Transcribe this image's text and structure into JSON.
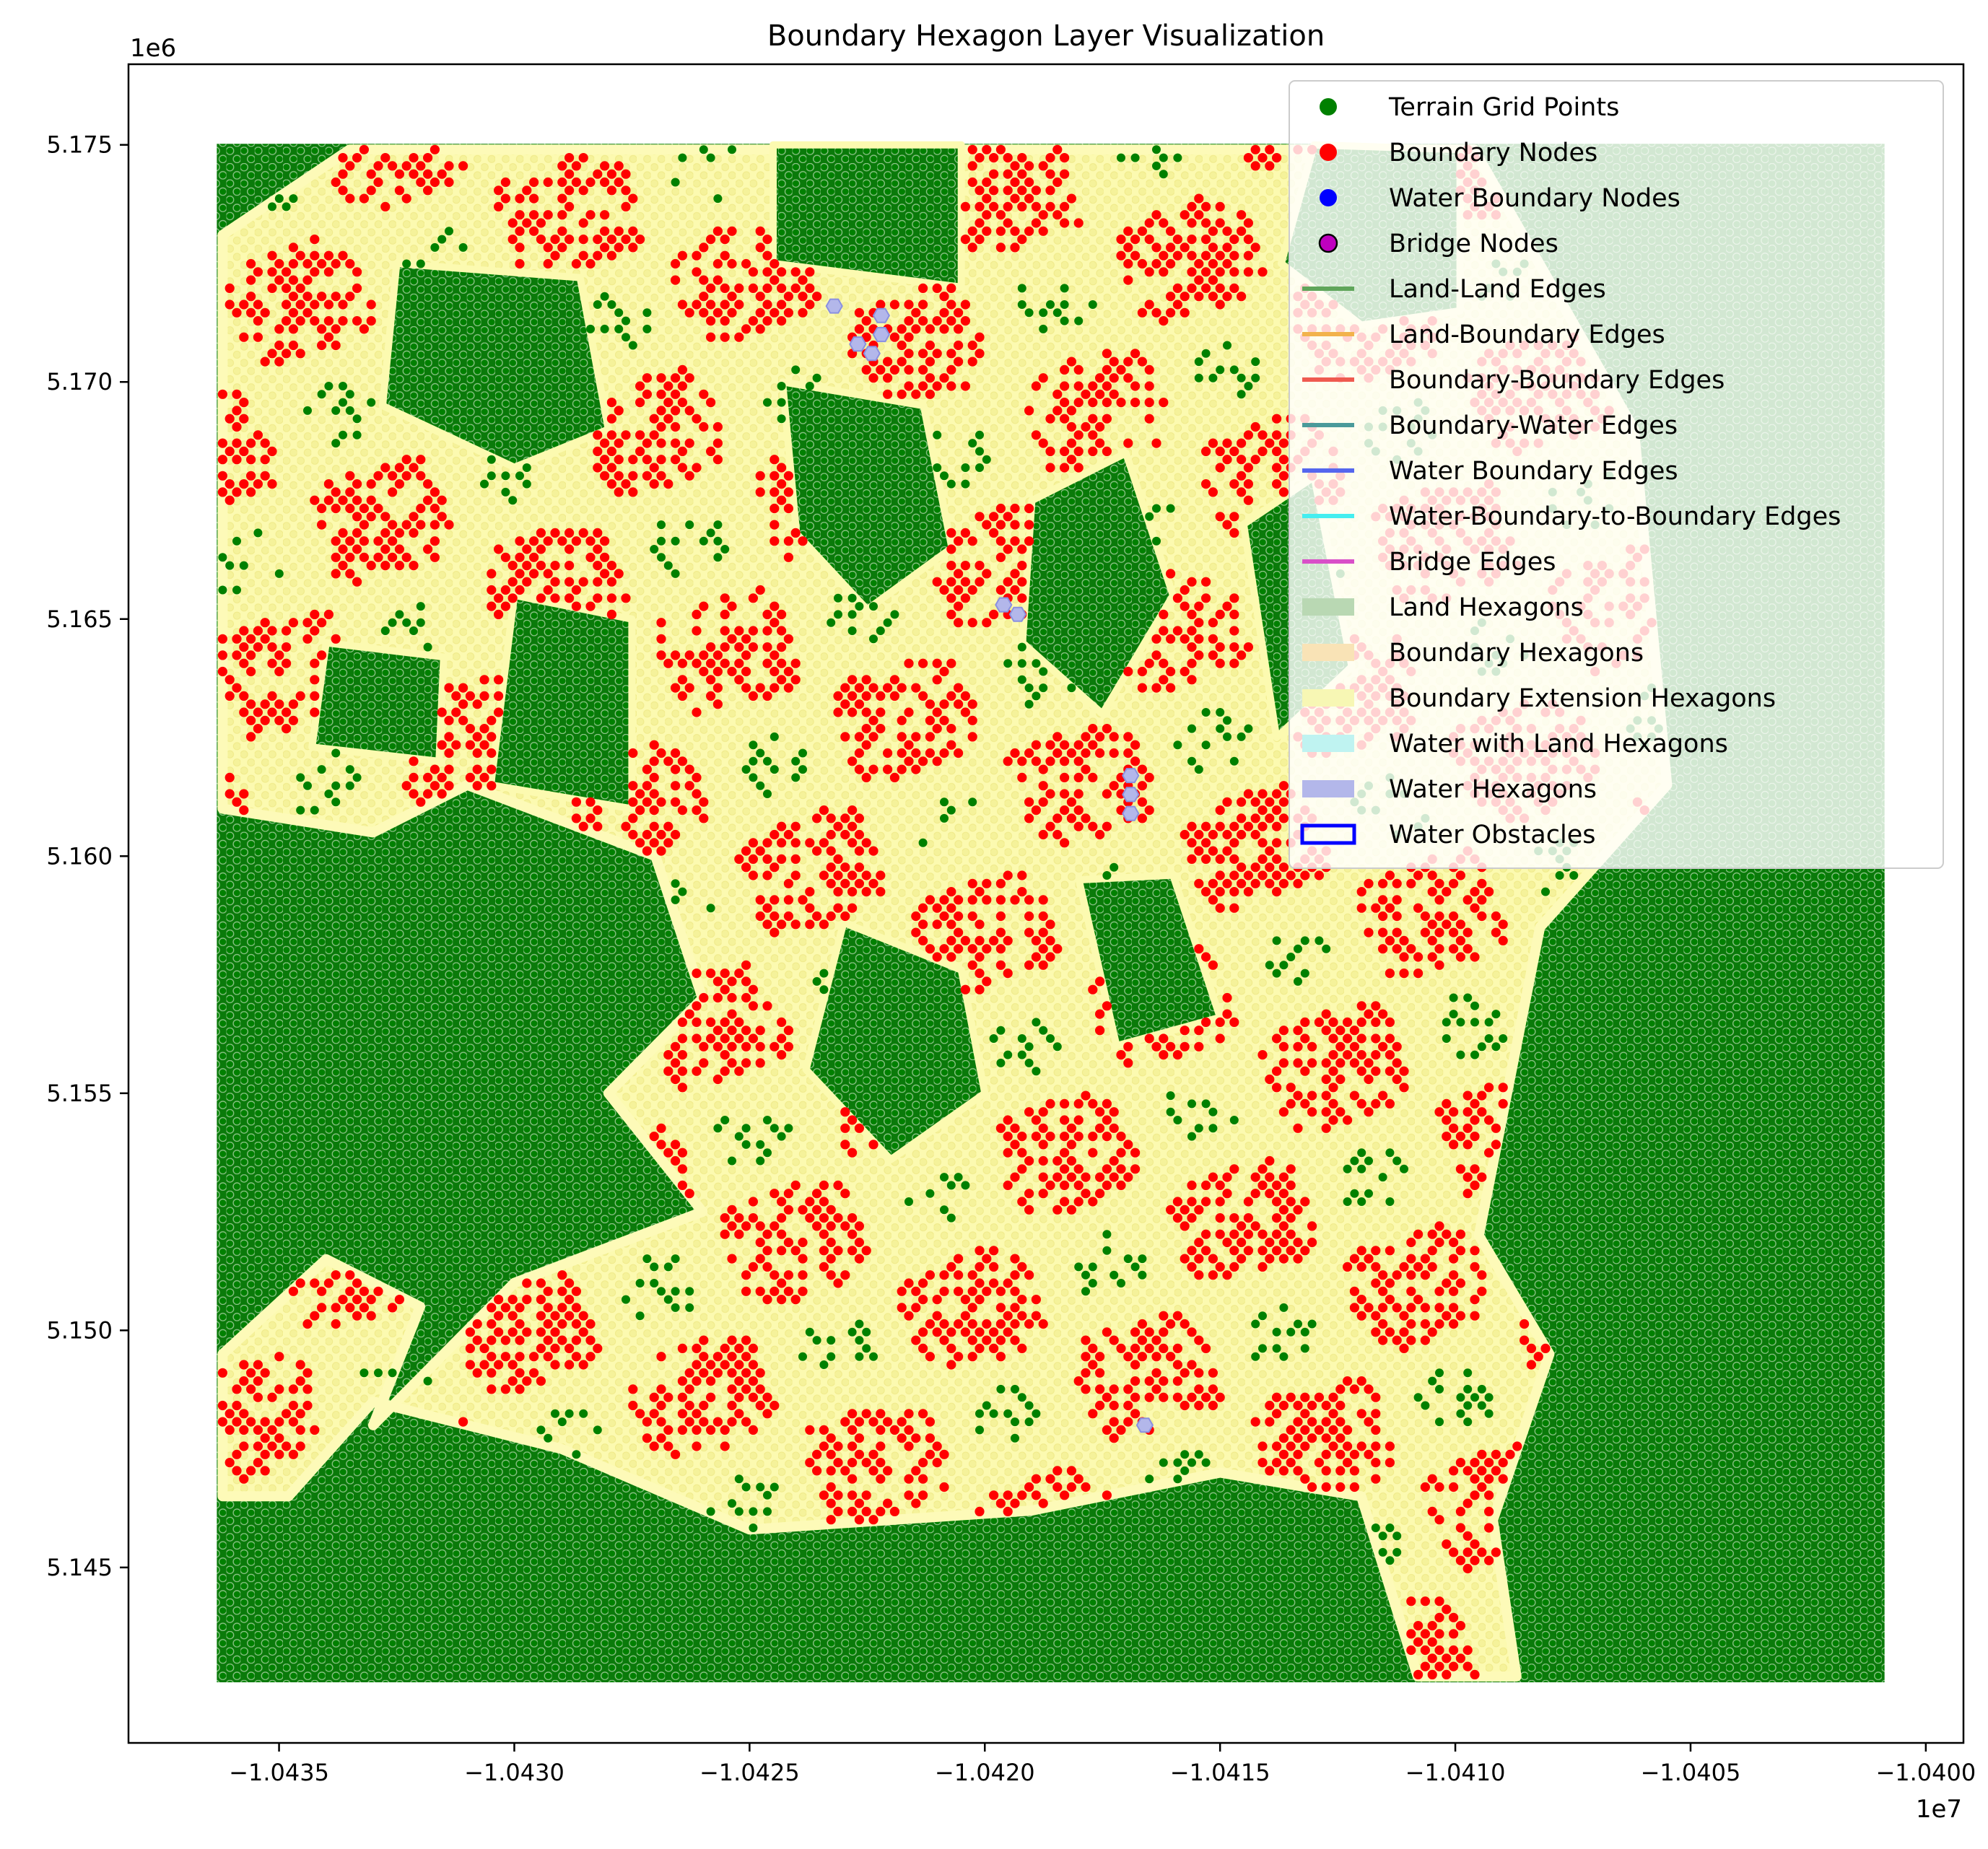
{
  "chart_data": {
    "type": "scatter",
    "title": "Boundary Hexagon Layer Visualization",
    "xlabel": "",
    "ylabel": "",
    "x_offset_label": "1e7",
    "y_offset_label": "1e6",
    "xlim": [
      -10438200,
      -10399200
    ],
    "ylim": [
      5141300,
      5176700
    ],
    "xticks": [
      -10435000,
      -10430000,
      -10425000,
      -10420000,
      -10415000,
      -10410000,
      -10405000,
      -10400000
    ],
    "xtick_labels": [
      "−1.0435",
      "−1.0430",
      "−1.0425",
      "−1.0420",
      "−1.0415",
      "−1.0410",
      "−1.0405",
      "−1.0400"
    ],
    "yticks": [
      5145000,
      5150000,
      5155000,
      5160000,
      5165000,
      5170000,
      5175000
    ],
    "ytick_labels": [
      "5.145",
      "5.150",
      "5.155",
      "5.160",
      "5.165",
      "5.170",
      "5.175"
    ],
    "grid": false,
    "legend_position": "top-right",
    "grid_extent": {
      "x": [
        -10436200,
        -10401000
      ],
      "y": [
        5142700,
        5174900
      ]
    },
    "hex_spacing": 300,
    "regions": [
      {
        "name": "Boundary region",
        "points": [
          [
            -10436200,
            5173100
          ],
          [
            -10433500,
            5174900
          ],
          [
            -10409600,
            5174900
          ],
          [
            -10406200,
            5169000
          ],
          [
            -10405500,
            5161500
          ],
          [
            -10408200,
            5158500
          ],
          [
            -10409500,
            5152000
          ],
          [
            -10408000,
            5149500
          ],
          [
            -10409200,
            5146000
          ],
          [
            -10408700,
            5142700
          ],
          [
            -10410800,
            5142700
          ],
          [
            -10412000,
            5146500
          ],
          [
            -10415000,
            5147000
          ],
          [
            -10419000,
            5146200
          ],
          [
            -10425000,
            5145800
          ],
          [
            -10429000,
            5147500
          ],
          [
            -10433000,
            5148500
          ],
          [
            -10434800,
            5146500
          ],
          [
            -10436200,
            5146500
          ],
          [
            -10436200,
            5149500
          ],
          [
            -10434000,
            5151500
          ],
          [
            -10432000,
            5150500
          ],
          [
            -10433000,
            5148000
          ],
          [
            -10430000,
            5151000
          ],
          [
            -10426000,
            5152500
          ],
          [
            -10428000,
            5155000
          ],
          [
            -10426000,
            5157000
          ],
          [
            -10427000,
            5160000
          ],
          [
            -10431000,
            5161500
          ],
          [
            -10433000,
            5160500
          ],
          [
            -10436200,
            5161000
          ]
        ]
      },
      {
        "name": "Land pocket",
        "points": [
          [
            -10430000,
            5165500
          ],
          [
            -10427500,
            5165000
          ],
          [
            -10427500,
            5161000
          ],
          [
            -10430500,
            5161500
          ]
        ]
      },
      {
        "name": "Land pocket",
        "points": [
          [
            -10424500,
            5175000
          ],
          [
            -10420500,
            5175000
          ],
          [
            -10420500,
            5172000
          ],
          [
            -10424500,
            5172500
          ]
        ]
      },
      {
        "name": "Land pocket",
        "points": [
          [
            -10424300,
            5170000
          ],
          [
            -10421300,
            5169500
          ],
          [
            -10420700,
            5166500
          ],
          [
            -10422500,
            5165200
          ],
          [
            -10424000,
            5166800
          ]
        ]
      },
      {
        "name": "Land pocket",
        "points": [
          [
            -10419000,
            5167500
          ],
          [
            -10417000,
            5168500
          ],
          [
            -10416000,
            5165500
          ],
          [
            -10417500,
            5163000
          ],
          [
            -10419200,
            5164500
          ]
        ]
      },
      {
        "name": "Land pocket",
        "points": [
          [
            -10414500,
            5167000
          ],
          [
            -10413000,
            5168000
          ],
          [
            -10412200,
            5164000
          ],
          [
            -10413800,
            5162500
          ]
        ]
      },
      {
        "name": "Land pocket",
        "points": [
          [
            -10413000,
            5175000
          ],
          [
            -10409900,
            5174900
          ],
          [
            -10409900,
            5171500
          ],
          [
            -10412000,
            5171200
          ],
          [
            -10413700,
            5172500
          ]
        ]
      },
      {
        "name": "Land pocket",
        "points": [
          [
            -10423000,
            5158600
          ],
          [
            -10420500,
            5157600
          ],
          [
            -10420000,
            5155000
          ],
          [
            -10422000,
            5153600
          ],
          [
            -10423800,
            5155500
          ]
        ]
      },
      {
        "name": "Land pocket",
        "points": [
          [
            -10418000,
            5159500
          ],
          [
            -10416000,
            5159600
          ],
          [
            -10415000,
            5156600
          ],
          [
            -10417200,
            5156000
          ]
        ]
      },
      {
        "name": "Land pocket",
        "points": [
          [
            -10432500,
            5172500
          ],
          [
            -10428600,
            5172200
          ],
          [
            -10428000,
            5169000
          ],
          [
            -10430000,
            5168200
          ],
          [
            -10432800,
            5169500
          ]
        ]
      },
      {
        "name": "Land pocket",
        "points": [
          [
            -10434000,
            5164500
          ],
          [
            -10431500,
            5164200
          ],
          [
            -10431600,
            5162000
          ],
          [
            -10434300,
            5162300
          ]
        ]
      }
    ],
    "series": [
      {
        "name": "Terrain Grid Points",
        "marker": "circle",
        "color": "#008000",
        "edge": "none"
      },
      {
        "name": "Boundary Nodes",
        "marker": "circle",
        "color": "#ff0000",
        "edge": "none"
      },
      {
        "name": "Water Boundary Nodes",
        "marker": "circle",
        "color": "#0000ff",
        "edge": "none"
      },
      {
        "name": "Bridge Nodes",
        "marker": "circle",
        "color": "#bf00bf",
        "edge": "#000000"
      },
      {
        "name": "Land-Land Edges",
        "marker": "line",
        "color": "#5fa55a"
      },
      {
        "name": "Land-Boundary Edges",
        "marker": "line",
        "color": "#f2b24b"
      },
      {
        "name": "Boundary-Boundary Edges",
        "marker": "line",
        "color": "#ef5a50"
      },
      {
        "name": "Boundary-Water Edges",
        "marker": "line",
        "color": "#4a9a9a"
      },
      {
        "name": "Water Boundary Edges",
        "marker": "line",
        "color": "#5566ee"
      },
      {
        "name": "Water-Boundary-to-Boundary Edges",
        "marker": "line",
        "color": "#44eef0"
      },
      {
        "name": "Bridge Edges",
        "marker": "line",
        "color": "#d94fc8"
      },
      {
        "name": "Land Hexagons",
        "marker": "patch",
        "color": "#b9d8b3"
      },
      {
        "name": "Boundary Hexagons",
        "marker": "patch",
        "color": "#f9e3b6"
      },
      {
        "name": "Boundary Extension Hexagons",
        "marker": "patch",
        "color": "#f7f7b4"
      },
      {
        "name": "Water with Land Hexagons",
        "marker": "patch",
        "color": "#bff3f1"
      },
      {
        "name": "Water Hexagons",
        "marker": "patch",
        "color": "#b3b7ea"
      },
      {
        "name": "Water Obstacles",
        "marker": "outline",
        "color": "#0000ff"
      }
    ],
    "water_hexagons": [
      [
        -10423200,
        5171600
      ],
      [
        -10422700,
        5170800
      ],
      [
        -10422400,
        5170600
      ],
      [
        -10422200,
        5171000
      ],
      [
        -10422200,
        5171400
      ],
      [
        -10419600,
        5165300
      ],
      [
        -10419300,
        5165100
      ],
      [
        -10416900,
        5161700
      ],
      [
        -10416900,
        5161300
      ],
      [
        -10416900,
        5160900
      ],
      [
        -10416600,
        5148000
      ]
    ],
    "colors": {
      "land": "#008000",
      "boundary_node": "#ff0000",
      "boundary_fill": "#fdfaa8",
      "land_hex": "#b9d8b3",
      "water_hex": "#b3b7ea"
    }
  }
}
